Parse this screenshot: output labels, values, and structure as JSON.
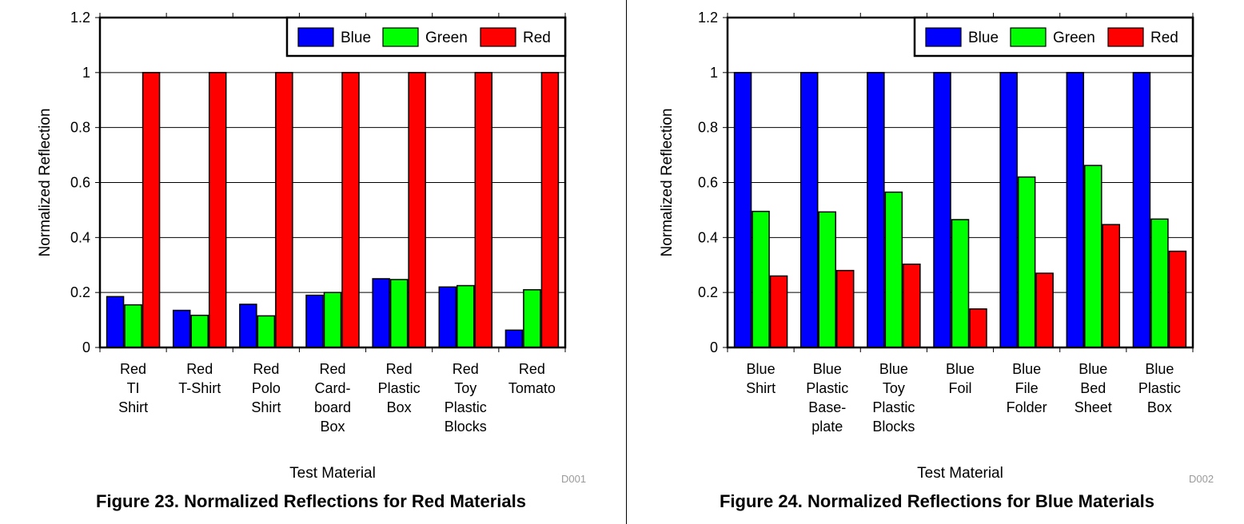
{
  "colors": {
    "Blue": "#0000ff",
    "Green": "#00ff00",
    "Red": "#ff0000",
    "grid": "#000000"
  },
  "chart_data": [
    {
      "type": "bar",
      "figure_code": "D001",
      "caption": "Figure 23. Normalized Reflections for Red Materials",
      "xlabel": "Test Material",
      "ylabel": "Normalized Reflection",
      "ylim": [
        0,
        1.2
      ],
      "yticks": [
        "0",
        "0.2",
        "0.4",
        "0.6",
        "0.8",
        "1",
        "1.2"
      ],
      "ytick_values": [
        0,
        0.2,
        0.4,
        0.6,
        0.8,
        1.0,
        1.2
      ],
      "grid": true,
      "legend_position": "top-right",
      "categories": [
        [
          "Red",
          "TI",
          "Shirt"
        ],
        [
          "Red",
          "T-Shirt"
        ],
        [
          "Red",
          "Polo",
          "Shirt"
        ],
        [
          "Red",
          "Card-",
          "board",
          "Box"
        ],
        [
          "Red",
          "Plastic",
          "Box"
        ],
        [
          "Red",
          "Toy",
          "Plastic",
          "Blocks"
        ],
        [
          "Red",
          "Tomato"
        ]
      ],
      "series": [
        {
          "name": "Blue",
          "values": [
            0.185,
            0.135,
            0.157,
            0.19,
            0.25,
            0.22,
            0.063
          ]
        },
        {
          "name": "Green",
          "values": [
            0.155,
            0.117,
            0.115,
            0.2,
            0.247,
            0.225,
            0.21
          ]
        },
        {
          "name": "Red",
          "values": [
            1.0,
            1.0,
            1.0,
            1.0,
            1.0,
            1.0,
            1.0
          ]
        }
      ]
    },
    {
      "type": "bar",
      "figure_code": "D002",
      "caption": "Figure 24. Normalized Reflections for Blue Materials",
      "xlabel": "Test Material",
      "ylabel": "Normalized Reflection",
      "ylim": [
        0,
        1.2
      ],
      "yticks": [
        "0",
        "0.2",
        "0.4",
        "0.6",
        "0.8",
        "1",
        "1.2"
      ],
      "ytick_values": [
        0,
        0.2,
        0.4,
        0.6,
        0.8,
        1.0,
        1.2
      ],
      "grid": true,
      "legend_position": "top-right",
      "categories": [
        [
          "Blue",
          "Shirt"
        ],
        [
          "Blue",
          "Plastic",
          "Base-",
          "plate"
        ],
        [
          "Blue",
          "Toy",
          "Plastic",
          "Blocks"
        ],
        [
          "Blue",
          "Foil"
        ],
        [
          "Blue",
          "File",
          "Folder"
        ],
        [
          "Blue",
          "Bed",
          "Sheet"
        ],
        [
          "Blue",
          "Plastic",
          "Box"
        ]
      ],
      "series": [
        {
          "name": "Blue",
          "values": [
            1.0,
            1.0,
            1.0,
            1.0,
            1.0,
            1.0,
            1.0
          ]
        },
        {
          "name": "Green",
          "values": [
            0.495,
            0.493,
            0.565,
            0.465,
            0.62,
            0.662,
            0.467
          ]
        },
        {
          "name": "Red",
          "values": [
            0.26,
            0.28,
            0.303,
            0.14,
            0.27,
            0.447,
            0.35
          ]
        }
      ]
    }
  ]
}
